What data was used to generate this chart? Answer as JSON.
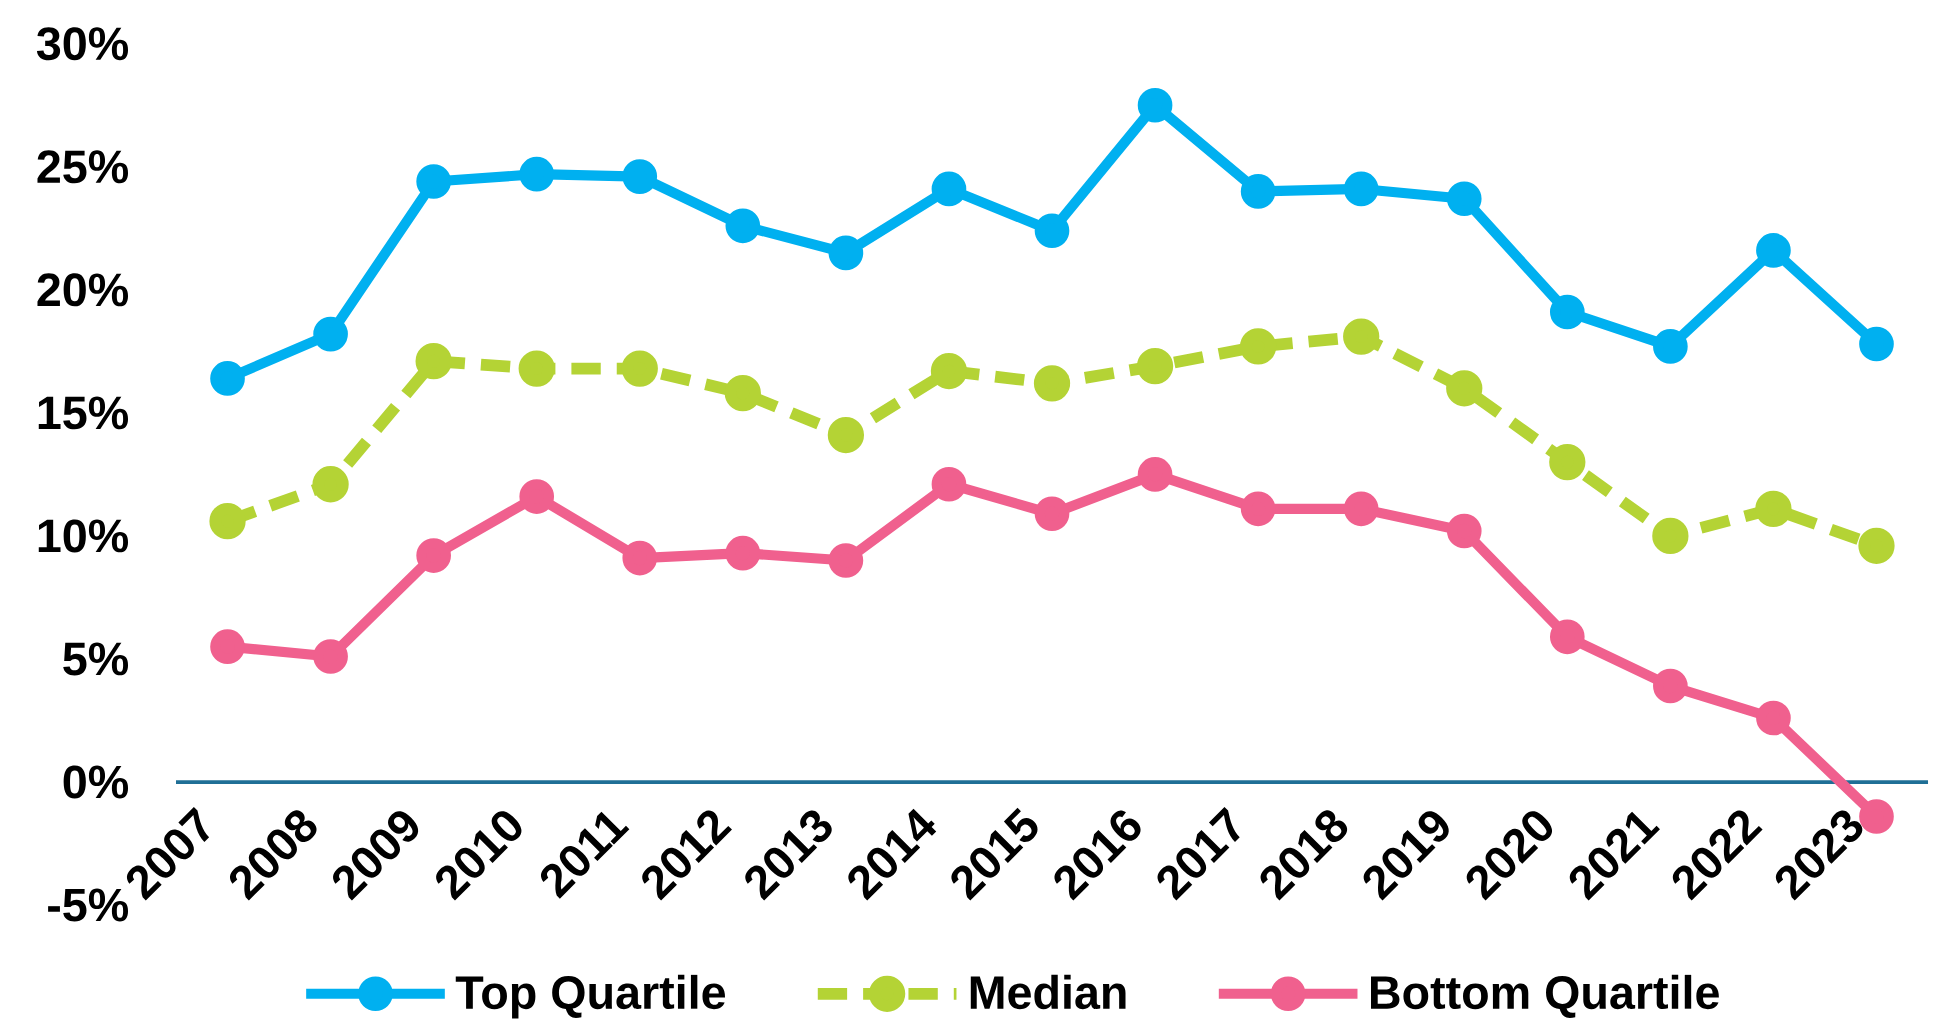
{
  "chart_data": {
    "type": "line",
    "categories": [
      "2007",
      "2008",
      "2009",
      "2010",
      "2011",
      "2012",
      "2013",
      "2014",
      "2015",
      "2016",
      "2017",
      "2018",
      "2019",
      "2020",
      "2021",
      "2022",
      "2023"
    ],
    "ylim": [
      -5,
      30
    ],
    "yticks": [
      {
        "value": -5,
        "label": "-5%"
      },
      {
        "value": 0,
        "label": "0%"
      },
      {
        "value": 5,
        "label": "5%"
      },
      {
        "value": 10,
        "label": "10%"
      },
      {
        "value": 15,
        "label": "15%"
      },
      {
        "value": 20,
        "label": "20%"
      },
      {
        "value": 25,
        "label": "25%"
      },
      {
        "value": 30,
        "label": "30%"
      }
    ],
    "legend": "bottom",
    "marker": "circle",
    "series": [
      {
        "name": "Top Quartile",
        "color": "#00b0f0",
        "line_style": "solid",
        "values": [
          16.4,
          18.2,
          24.4,
          24.7,
          24.6,
          22.6,
          21.5,
          24.1,
          22.4,
          27.5,
          24.0,
          24.1,
          23.7,
          19.1,
          17.7,
          21.6,
          17.8
        ]
      },
      {
        "name": "Median",
        "color": "#b4d335",
        "line_style": "dashed",
        "values": [
          10.6,
          12.1,
          17.1,
          16.8,
          16.8,
          15.8,
          14.1,
          16.7,
          16.2,
          16.9,
          17.7,
          18.1,
          16.0,
          13.0,
          10.0,
          11.1,
          9.6
        ]
      },
      {
        "name": "Bottom Quartile",
        "color": "#f0608e",
        "line_style": "solid",
        "values": [
          5.5,
          5.1,
          9.2,
          11.6,
          9.1,
          9.3,
          9.0,
          12.1,
          10.9,
          12.5,
          11.1,
          11.1,
          10.2,
          5.9,
          3.9,
          2.6,
          -1.4
        ]
      }
    ]
  }
}
